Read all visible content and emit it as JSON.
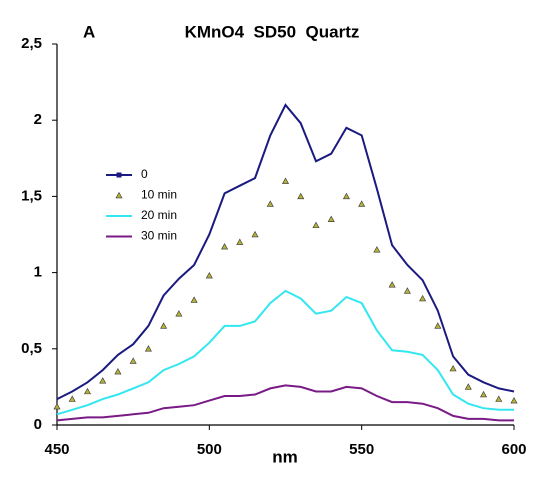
{
  "chart_data": {
    "type": "line",
    "panel_label": "A",
    "title": "KMnO4  SD50  Quartz",
    "x_label": "nm",
    "x": [
      450,
      455,
      460,
      465,
      470,
      475,
      480,
      485,
      490,
      495,
      500,
      505,
      510,
      515,
      520,
      525,
      530,
      535,
      540,
      545,
      550,
      555,
      560,
      565,
      570,
      575,
      580,
      585,
      590,
      595,
      600
    ],
    "xlim": [
      450,
      600
    ],
    "xticks": [
      450,
      500,
      550,
      600
    ],
    "ylim": [
      0,
      2.5
    ],
    "yticks": [
      0,
      {
        "value": 0.5,
        "label": "0,5"
      },
      1,
      {
        "value": 1.5,
        "label": "1,5"
      },
      2,
      {
        "value": 2.5,
        "label": "2,5"
      }
    ],
    "grid": false,
    "series": [
      {
        "name": "0",
        "color": "#1a1a80",
        "marker": "line",
        "values": [
          0.17,
          0.22,
          0.28,
          0.36,
          0.46,
          0.53,
          0.65,
          0.85,
          0.96,
          1.05,
          1.25,
          1.52,
          1.57,
          1.62,
          1.9,
          2.1,
          1.98,
          1.73,
          1.78,
          1.95,
          1.9,
          1.55,
          1.18,
          1.05,
          0.95,
          0.75,
          0.45,
          0.33,
          0.28,
          0.24,
          0.22
        ]
      },
      {
        "name": "10 min",
        "color": "#b5b03a",
        "marker": "triangle",
        "values": [
          0.12,
          0.17,
          0.22,
          0.29,
          0.35,
          0.42,
          0.5,
          0.65,
          0.73,
          0.82,
          0.98,
          1.17,
          1.2,
          1.25,
          1.45,
          1.6,
          1.5,
          1.31,
          1.35,
          1.5,
          1.45,
          1.15,
          0.92,
          0.88,
          0.83,
          0.65,
          0.37,
          0.25,
          0.2,
          0.17,
          0.16
        ]
      },
      {
        "name": "20 min",
        "color": "#33e6f0",
        "marker": "line",
        "values": [
          0.07,
          0.1,
          0.13,
          0.17,
          0.2,
          0.24,
          0.28,
          0.36,
          0.4,
          0.45,
          0.54,
          0.65,
          0.65,
          0.68,
          0.8,
          0.88,
          0.83,
          0.73,
          0.75,
          0.84,
          0.8,
          0.62,
          0.49,
          0.48,
          0.46,
          0.36,
          0.2,
          0.14,
          0.11,
          0.1,
          0.1
        ]
      },
      {
        "name": "30 min",
        "color": "#7a1a86",
        "marker": "line",
        "values": [
          0.03,
          0.04,
          0.05,
          0.05,
          0.06,
          0.07,
          0.08,
          0.11,
          0.12,
          0.13,
          0.16,
          0.19,
          0.19,
          0.2,
          0.24,
          0.26,
          0.25,
          0.22,
          0.22,
          0.25,
          0.24,
          0.19,
          0.15,
          0.15,
          0.14,
          0.11,
          0.06,
          0.04,
          0.04,
          0.03,
          0.03
        ]
      }
    ]
  }
}
